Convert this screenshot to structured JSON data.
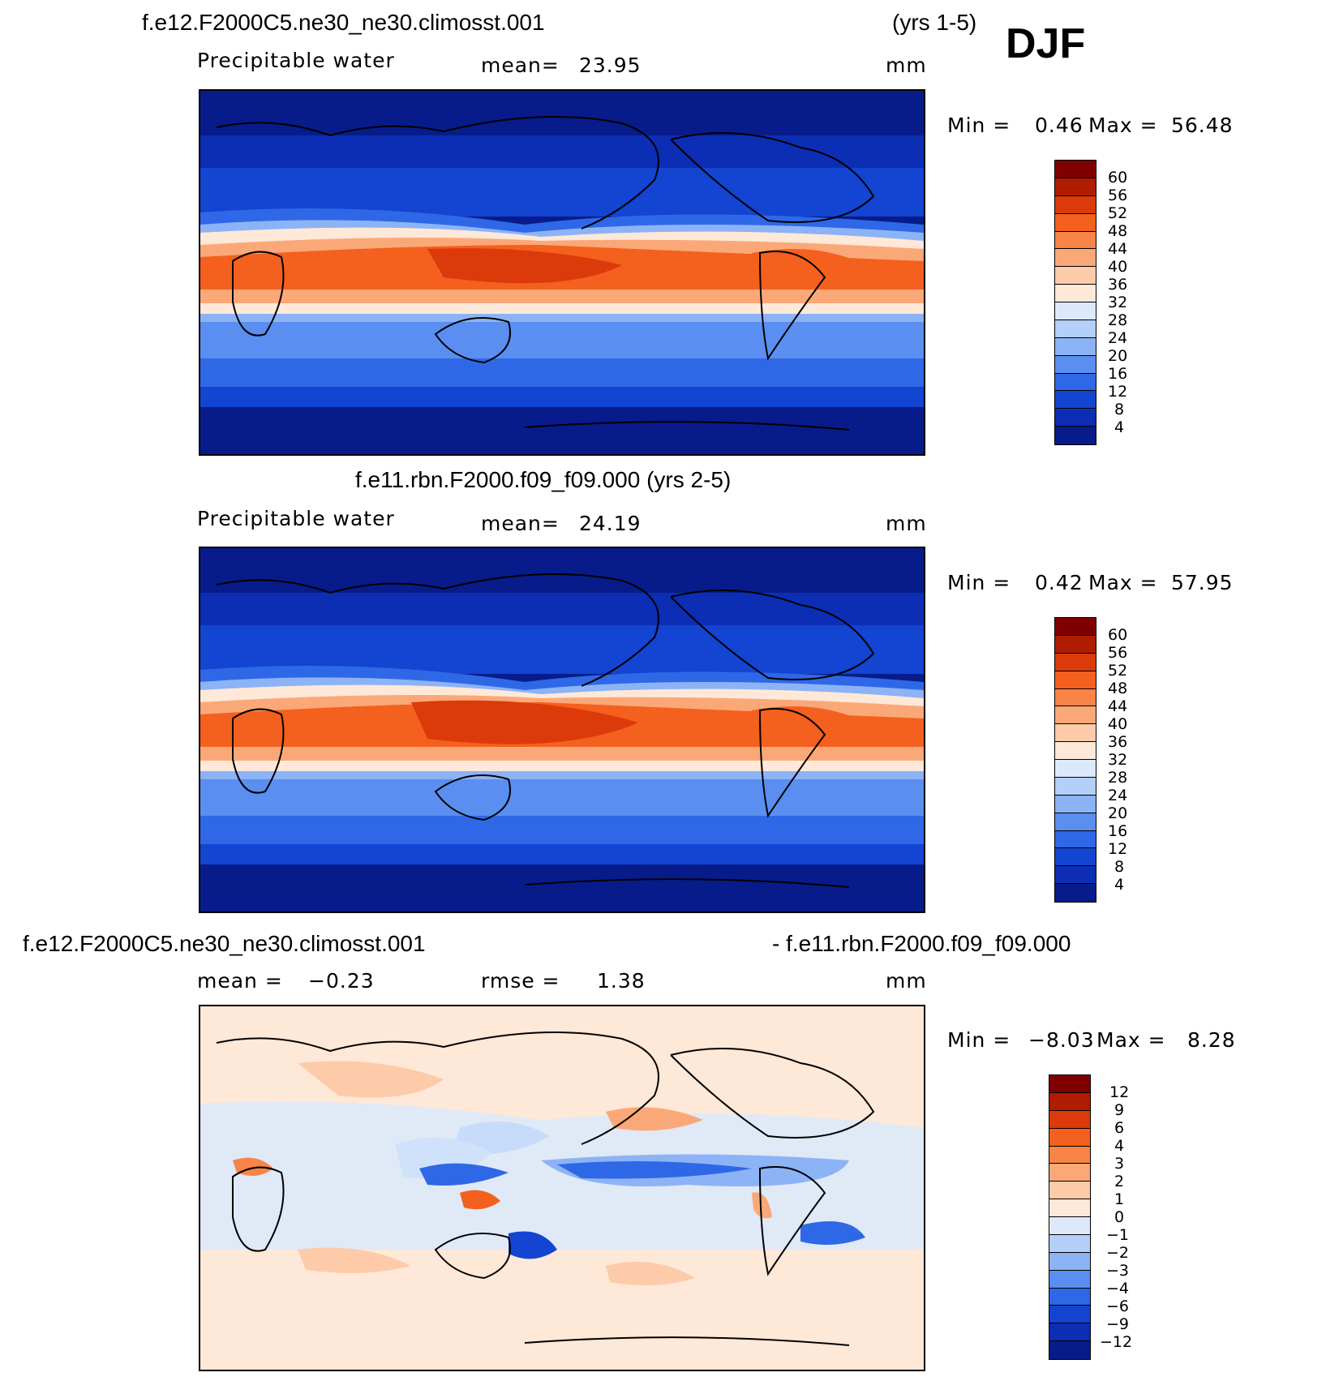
{
  "season": "DJF",
  "panels": [
    {
      "title": "f.e12.F2000C5.ne30_ne30.climosst.001",
      "title_right": "(yrs 1-5)",
      "left_label": "Precipitable  water",
      "stat_label": "mean=",
      "stat_value": "23.95",
      "units": "mm",
      "min_label": "Min  =",
      "min_value": "0.46",
      "max_label": "Max  =",
      "max_value": "56.48",
      "colorbar_ticks": [
        "60",
        "56",
        "52",
        "48",
        "44",
        "40",
        "36",
        "32",
        "28",
        "24",
        "20",
        "16",
        "12",
        "8",
        "4"
      ]
    },
    {
      "title": "f.e11.rbn.F2000.f09_f09.000 (yrs 2-5)",
      "left_label": "Precipitable  water",
      "stat_label": "mean=",
      "stat_value": "24.19",
      "units": "mm",
      "min_label": "Min  =",
      "min_value": "0.42",
      "max_label": "Max  =",
      "max_value": "57.95",
      "colorbar_ticks": [
        "60",
        "56",
        "52",
        "48",
        "44",
        "40",
        "36",
        "32",
        "28",
        "24",
        "20",
        "16",
        "12",
        "8",
        "4"
      ]
    },
    {
      "title": "f.e12.F2000C5.ne30_ne30.climosst.001",
      "title_right": "- f.e11.rbn.F2000.f09_f09.000",
      "left_label": "mean  =",
      "left_value": "−0.23",
      "stat_label": "rmse  =",
      "stat_value": "1.38",
      "units": "mm",
      "min_label": "Min  =",
      "min_value": "−8.03",
      "max_label": "Max  =",
      "max_value": "8.28",
      "colorbar_ticks": [
        "12",
        "9",
        "6",
        "4",
        "3",
        "2",
        "1",
        "0",
        "−1",
        "−2",
        "−3",
        "−4",
        "−6",
        "−9",
        "−12"
      ]
    }
  ],
  "colors": {
    "abs_scale": [
      "#800000",
      "#b01c00",
      "#dc3a0a",
      "#f4601e",
      "#f88448",
      "#fba878",
      "#fdcbaa",
      "#fee8d8",
      "#dbe9fb",
      "#b4cffa",
      "#8cb3f5",
      "#5a8ef0",
      "#2f68e6",
      "#1344d2",
      "#0c2eb4",
      "#071c8a"
    ],
    "diff_scale": [
      "#800000",
      "#b01c00",
      "#dc3a0a",
      "#f4601e",
      "#f88448",
      "#fba878",
      "#fdcbaa",
      "#fee8d8",
      "#dbe9fb",
      "#b4cffa",
      "#8cb3f5",
      "#5a8ef0",
      "#2f68e6",
      "#1344d2",
      "#0c2eb4",
      "#071c8a"
    ]
  }
}
